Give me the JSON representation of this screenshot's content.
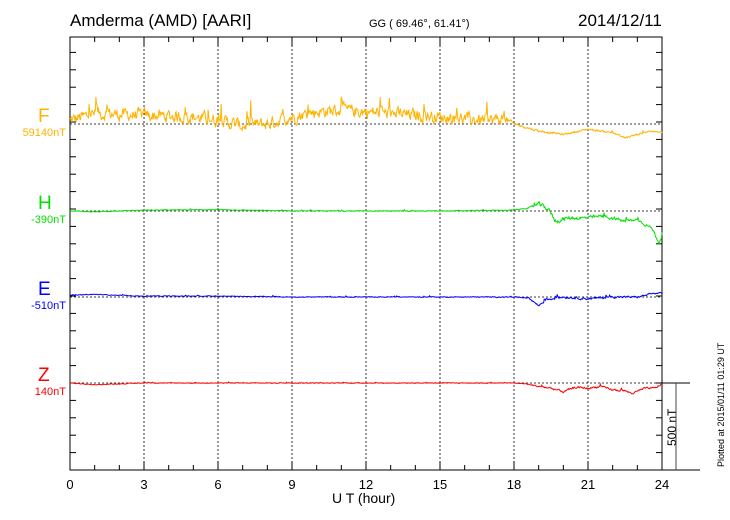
{
  "chart_data": {
    "type": "line",
    "title": "Amderma (AMD)  [AARI]",
    "coords": "GG ( 69.46°,  61.41°)",
    "date": "2014/12/11",
    "xlabel": "U T (hour)",
    "xlim": [
      0,
      24
    ],
    "xticks": [
      "0",
      "3",
      "6",
      "9",
      "12",
      "15",
      "18",
      "21",
      "24"
    ],
    "scale_label": "500 nT",
    "scale_nT": 500,
    "footer": "Plotted at 2015/01/11 01:29 UT",
    "grid": true,
    "series": [
      {
        "name": "F",
        "baseline_label": "59140nT",
        "color": "#ffb300",
        "noise_nT": [
          [
            0,
            60
          ],
          [
            17.5,
            60
          ],
          [
            18,
            10
          ],
          [
            24,
            8
          ]
        ],
        "points": [
          [
            0,
            20
          ],
          [
            1,
            60
          ],
          [
            3,
            50
          ],
          [
            5,
            40
          ],
          [
            6,
            20
          ],
          [
            7,
            -10
          ],
          [
            8,
            0
          ],
          [
            9,
            40
          ],
          [
            10,
            70
          ],
          [
            11,
            80
          ],
          [
            12,
            70
          ],
          [
            13,
            60
          ],
          [
            14,
            50
          ],
          [
            15,
            40
          ],
          [
            16,
            30
          ],
          [
            17,
            20
          ],
          [
            17.5,
            30
          ],
          [
            18,
            0
          ],
          [
            19,
            -40
          ],
          [
            20,
            -60
          ],
          [
            21,
            -30
          ],
          [
            22,
            -50
          ],
          [
            22.5,
            -80
          ],
          [
            23,
            -60
          ],
          [
            23.5,
            -40
          ],
          [
            24,
            -50
          ]
        ]
      },
      {
        "name": "H",
        "baseline_label": "-390nT",
        "color": "#00e000",
        "noise_nT": [
          [
            0,
            3
          ],
          [
            18.5,
            4
          ],
          [
            19,
            20
          ],
          [
            24,
            12
          ]
        ],
        "points": [
          [
            0,
            0
          ],
          [
            1,
            -5
          ],
          [
            3,
            5
          ],
          [
            6,
            8
          ],
          [
            9,
            0
          ],
          [
            12,
            0
          ],
          [
            15,
            0
          ],
          [
            18,
            5
          ],
          [
            18.7,
            20
          ],
          [
            19,
            40
          ],
          [
            19.4,
            10
          ],
          [
            19.7,
            -60
          ],
          [
            20.2,
            -40
          ],
          [
            21,
            -40
          ],
          [
            21.5,
            -30
          ],
          [
            22,
            -40
          ],
          [
            22.5,
            -60
          ],
          [
            23,
            -50
          ],
          [
            23.6,
            -100
          ],
          [
            23.9,
            -190
          ],
          [
            24,
            -140
          ]
        ]
      },
      {
        "name": "E",
        "baseline_label": "-510nT",
        "color": "#0000ff",
        "noise_nT": [
          [
            0,
            3
          ],
          [
            18.5,
            4
          ],
          [
            19,
            12
          ],
          [
            24,
            8
          ]
        ],
        "points": [
          [
            0,
            10
          ],
          [
            1,
            15
          ],
          [
            3,
            5
          ],
          [
            6,
            5
          ],
          [
            9,
            0
          ],
          [
            12,
            0
          ],
          [
            15,
            0
          ],
          [
            18,
            0
          ],
          [
            18.6,
            -5
          ],
          [
            19,
            -50
          ],
          [
            19.3,
            -15
          ],
          [
            20,
            0
          ],
          [
            21,
            -10
          ],
          [
            22,
            0
          ],
          [
            23,
            0
          ],
          [
            23.7,
            20
          ],
          [
            24,
            25
          ]
        ]
      },
      {
        "name": "Z",
        "baseline_label": "140nT",
        "color": "#ff0000",
        "noise_nT": [
          [
            0,
            3
          ],
          [
            18.5,
            3
          ],
          [
            19.3,
            10
          ],
          [
            24,
            8
          ]
        ],
        "points": [
          [
            0,
            0
          ],
          [
            1,
            -10
          ],
          [
            2,
            -5
          ],
          [
            3,
            0
          ],
          [
            6,
            0
          ],
          [
            9,
            0
          ],
          [
            12,
            0
          ],
          [
            15,
            0
          ],
          [
            18,
            0
          ],
          [
            18.5,
            -5
          ],
          [
            19,
            -20
          ],
          [
            19.5,
            -30
          ],
          [
            20,
            -50
          ],
          [
            20.5,
            -25
          ],
          [
            21,
            -30
          ],
          [
            21.5,
            -20
          ],
          [
            22,
            -40
          ],
          [
            22.5,
            -45
          ],
          [
            22.8,
            -60
          ],
          [
            23.3,
            -30
          ],
          [
            23.7,
            -30
          ],
          [
            24,
            -5
          ]
        ]
      }
    ]
  }
}
